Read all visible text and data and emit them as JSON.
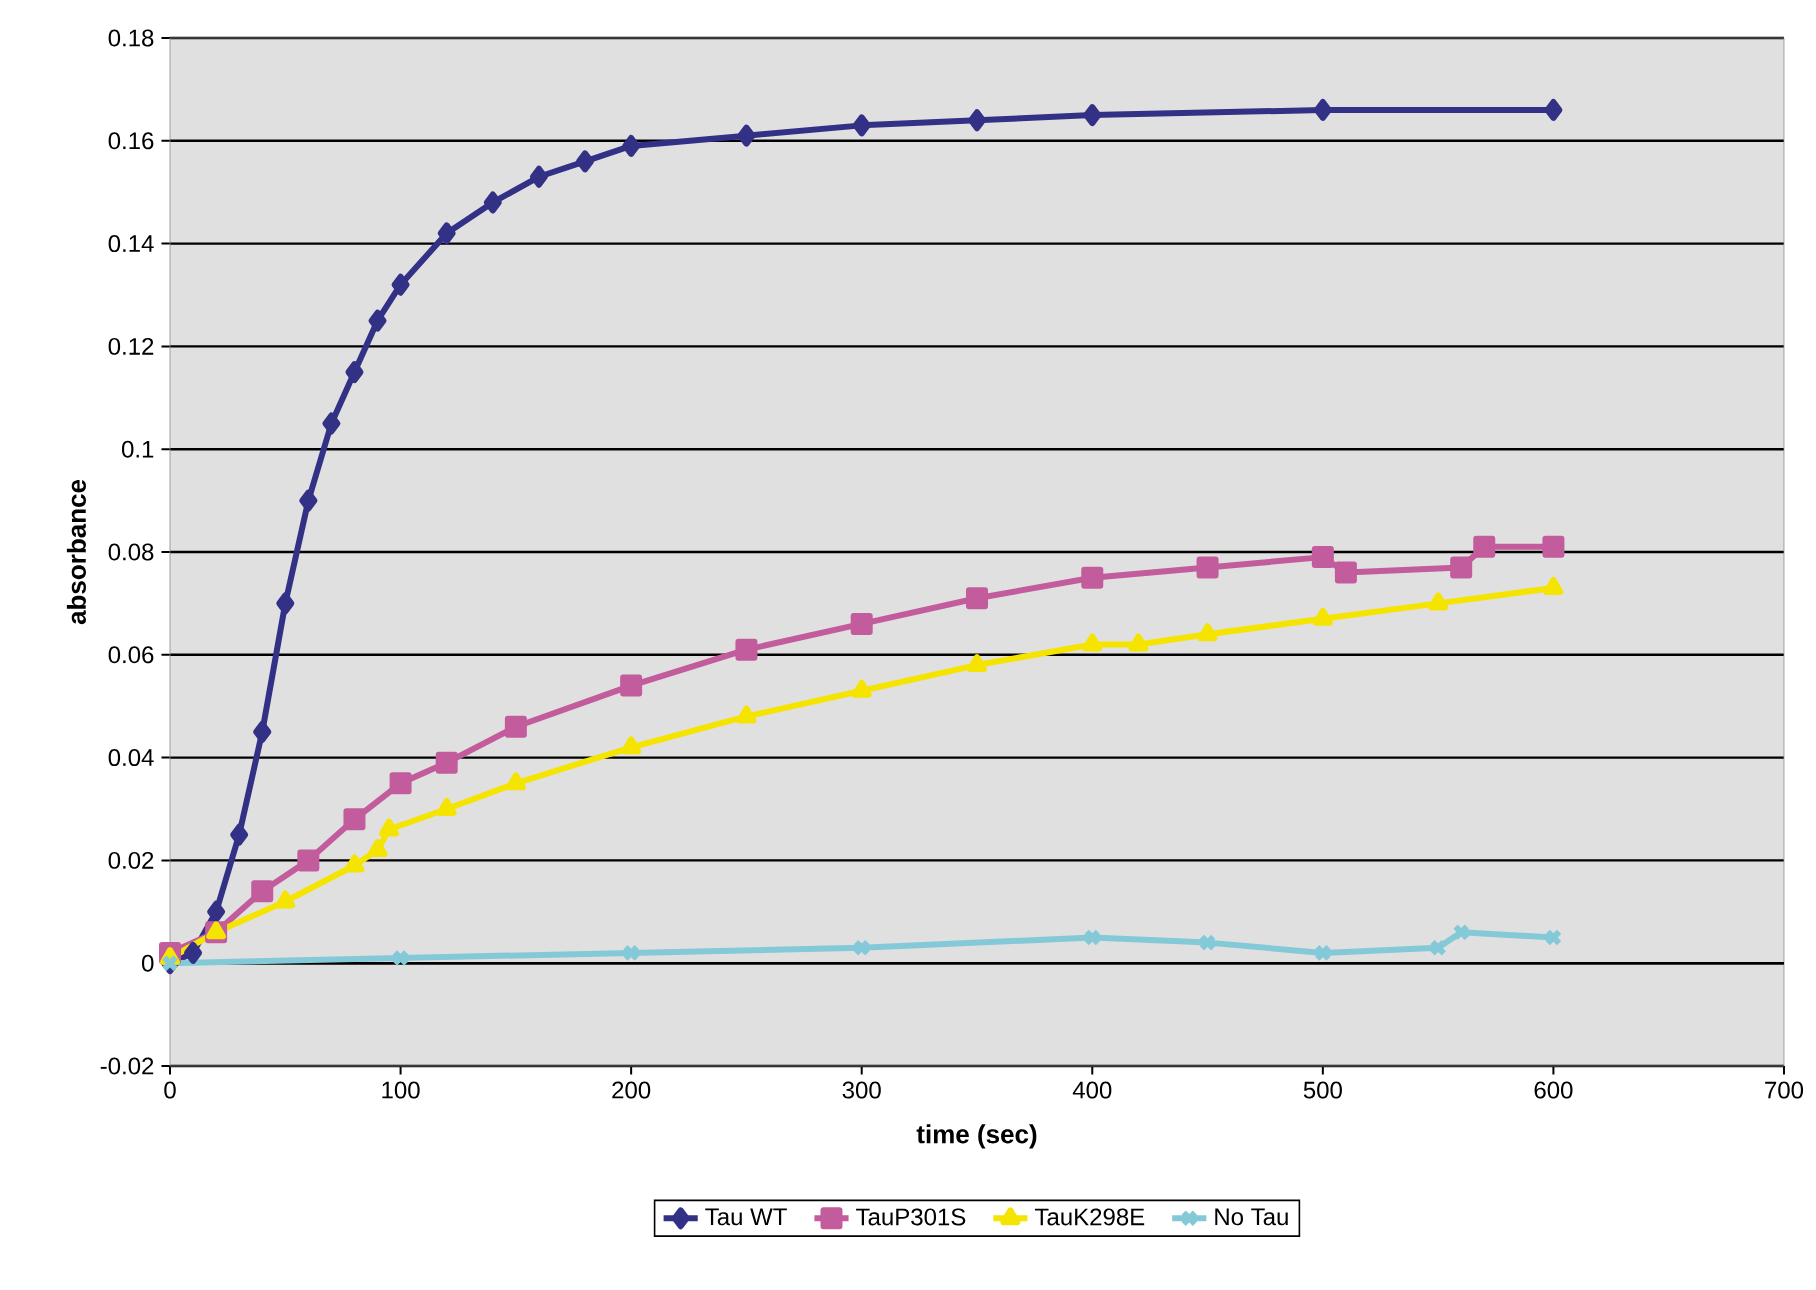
{
  "chart_data": {
    "type": "line",
    "xlabel": "time (sec)",
    "ylabel": "absorbance",
    "xlim": [
      0,
      700
    ],
    "xticks": [
      0,
      100,
      200,
      300,
      400,
      500,
      600,
      700
    ],
    "ylim": [
      -0.02,
      0.18
    ],
    "yticks": [
      -0.02,
      0,
      0.02,
      0.04,
      0.06,
      0.08,
      0.1,
      0.12,
      0.14,
      0.16,
      0.18
    ],
    "grid": "y",
    "legend": "bottom",
    "line_style": "solid",
    "series": [
      {
        "name": "Tau WT",
        "color": "#333186",
        "marker": "diamond",
        "x": [
          0,
          10,
          20,
          30,
          40,
          50,
          60,
          70,
          80,
          90,
          100,
          120,
          140,
          160,
          180,
          200,
          250,
          300,
          350,
          400,
          500,
          600
        ],
        "values": [
          0,
          0.002,
          0.01,
          0.025,
          0.045,
          0.07,
          0.09,
          0.105,
          0.115,
          0.125,
          0.132,
          0.142,
          0.148,
          0.153,
          0.156,
          0.159,
          0.161,
          0.163,
          0.164,
          0.165,
          0.166,
          0.166
        ]
      },
      {
        "name": "TauP301S",
        "color": "#c25c9c",
        "marker": "square",
        "x": [
          0,
          20,
          40,
          60,
          80,
          100,
          120,
          150,
          200,
          250,
          300,
          350,
          400,
          450,
          500,
          510,
          560,
          570,
          600
        ],
        "values": [
          0.002,
          0.006,
          0.014,
          0.02,
          0.028,
          0.035,
          0.039,
          0.046,
          0.054,
          0.061,
          0.066,
          0.071,
          0.075,
          0.077,
          0.079,
          0.076,
          0.077,
          0.081,
          0.081
        ]
      },
      {
        "name": "TauK298E",
        "color": "#f5e400",
        "marker": "triangle",
        "x": [
          0,
          20,
          50,
          80,
          90,
          95,
          120,
          150,
          200,
          250,
          300,
          350,
          400,
          420,
          450,
          500,
          550,
          600
        ],
        "values": [
          0.001,
          0.006,
          0.012,
          0.019,
          0.022,
          0.026,
          0.03,
          0.035,
          0.042,
          0.048,
          0.053,
          0.058,
          0.062,
          0.062,
          0.064,
          0.067,
          0.07,
          0.073
        ]
      },
      {
        "name": "No Tau",
        "color": "#84c9d8",
        "marker": "cross",
        "x": [
          0,
          100,
          200,
          300,
          400,
          450,
          500,
          550,
          560,
          600
        ],
        "values": [
          0,
          0.001,
          0.002,
          0.003,
          0.005,
          0.004,
          0.002,
          0.003,
          0.006,
          0.005
        ]
      }
    ]
  }
}
